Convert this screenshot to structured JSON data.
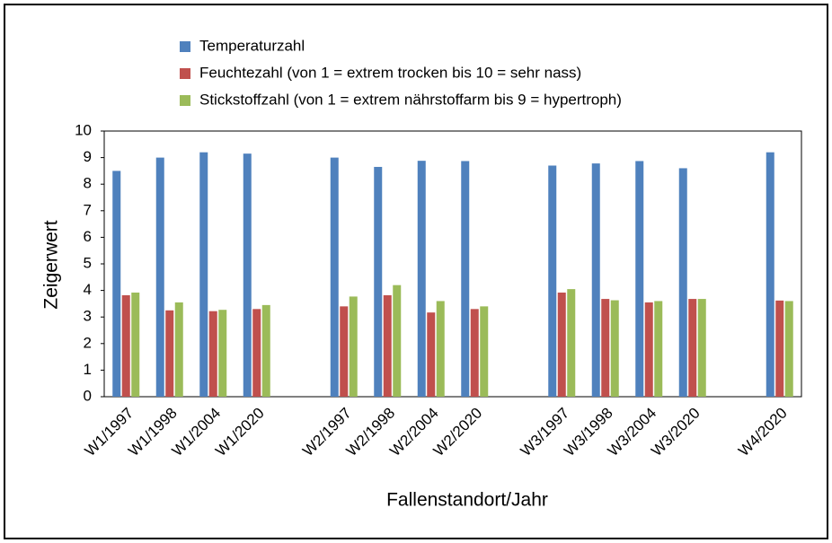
{
  "chart_data": {
    "type": "bar",
    "xlabel": "Fallenstandort/Jahr",
    "ylabel": "Zeigerwert",
    "categories": [
      "W1/1997",
      "W1/1998",
      "W1/2004",
      "W1/2020",
      null,
      "W2/1997",
      "W2/1998",
      "W2/2004",
      "W2/2020",
      null,
      "W3/1997",
      "W3/1998",
      "W3/2004",
      "W3/2020",
      null,
      "W4/2020"
    ],
    "series": [
      {
        "name": "Temperaturzahl",
        "color": "#4f81bd",
        "values": [
          8.5,
          9.0,
          9.2,
          9.15,
          null,
          9.0,
          8.65,
          8.88,
          8.87,
          null,
          8.7,
          8.78,
          8.87,
          8.6,
          null,
          9.2
        ]
      },
      {
        "name": "Feuchtezahl (von 1 = extrem trocken bis 10 = sehr nass)",
        "color": "#c0504d",
        "values": [
          3.82,
          3.25,
          3.22,
          3.3,
          null,
          3.4,
          3.82,
          3.17,
          3.3,
          null,
          3.92,
          3.68,
          3.55,
          3.68,
          null,
          3.62
        ]
      },
      {
        "name": "Stickstoffzahl (von 1 = extrem nährstoffarm bis 9 = hypertroph)",
        "color": "#9bbb59",
        "values": [
          3.92,
          3.55,
          3.27,
          3.45,
          null,
          3.77,
          4.2,
          3.6,
          3.4,
          null,
          4.05,
          3.63,
          3.6,
          3.68,
          null,
          3.6
        ]
      }
    ],
    "ylim": [
      0,
      10
    ],
    "yticks": [
      0,
      1,
      2,
      3,
      4,
      5,
      6,
      7,
      8,
      9,
      10
    ],
    "grid": false
  }
}
